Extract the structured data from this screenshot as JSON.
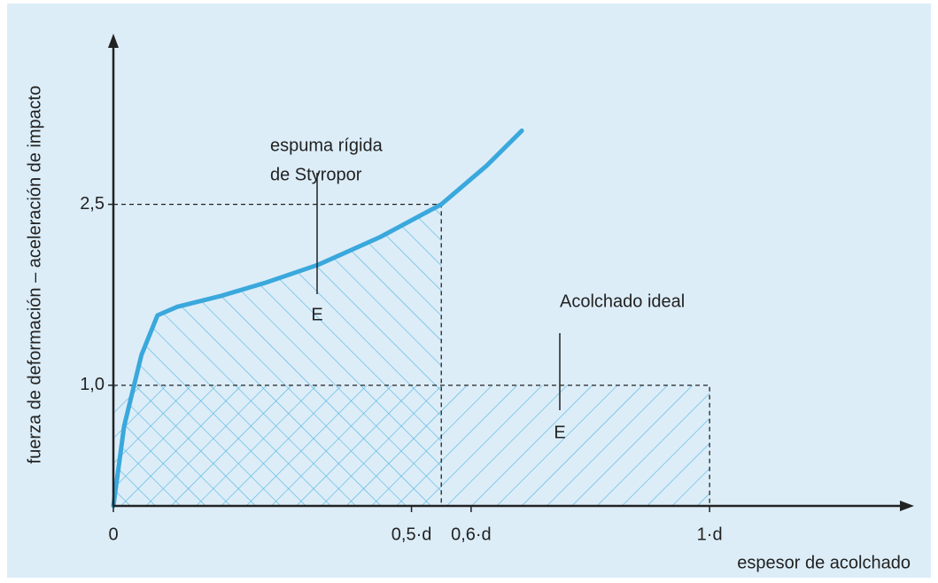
{
  "chart_data": {
    "type": "line",
    "ylabel": "fuerza de deformación – aceleración de impacto",
    "xlabel": "espesor de acolchado",
    "xlim": [
      0,
      1.34
    ],
    "ylim": [
      0,
      3.9
    ],
    "xticks": [
      0,
      {
        "value": 0.5,
        "label": "0,5·d"
      },
      {
        "value": 0.6,
        "label": "0,6·d"
      },
      {
        "value": 1,
        "label": "1·d"
      }
    ],
    "yticks": [
      {
        "value": 1,
        "label": "1,0"
      },
      {
        "value": 2.5,
        "label": "2,5"
      }
    ],
    "series": [
      {
        "annotation": [
          "espuma rígida",
          "de Styropor"
        ],
        "marker": "E",
        "color": "#3aa8dc",
        "x": [
          0,
          0.018,
          0.047,
          0.074,
          0.107,
          0.18,
          0.255,
          0.344,
          0.448,
          0.55,
          0.626,
          0.685
        ],
        "values": [
          0,
          0.66,
          1.25,
          1.58,
          1.65,
          1.74,
          1.85,
          2.0,
          2.23,
          2.5,
          2.82,
          3.11
        ],
        "cutoff": {
          "x": 0.55,
          "y": 2.5
        }
      },
      {
        "annotation": [
          "Acolchado ideal"
        ],
        "marker": "E",
        "color": "#3aa8dc",
        "x": [
          0,
          1
        ],
        "values": [
          1,
          1
        ]
      }
    ]
  }
}
